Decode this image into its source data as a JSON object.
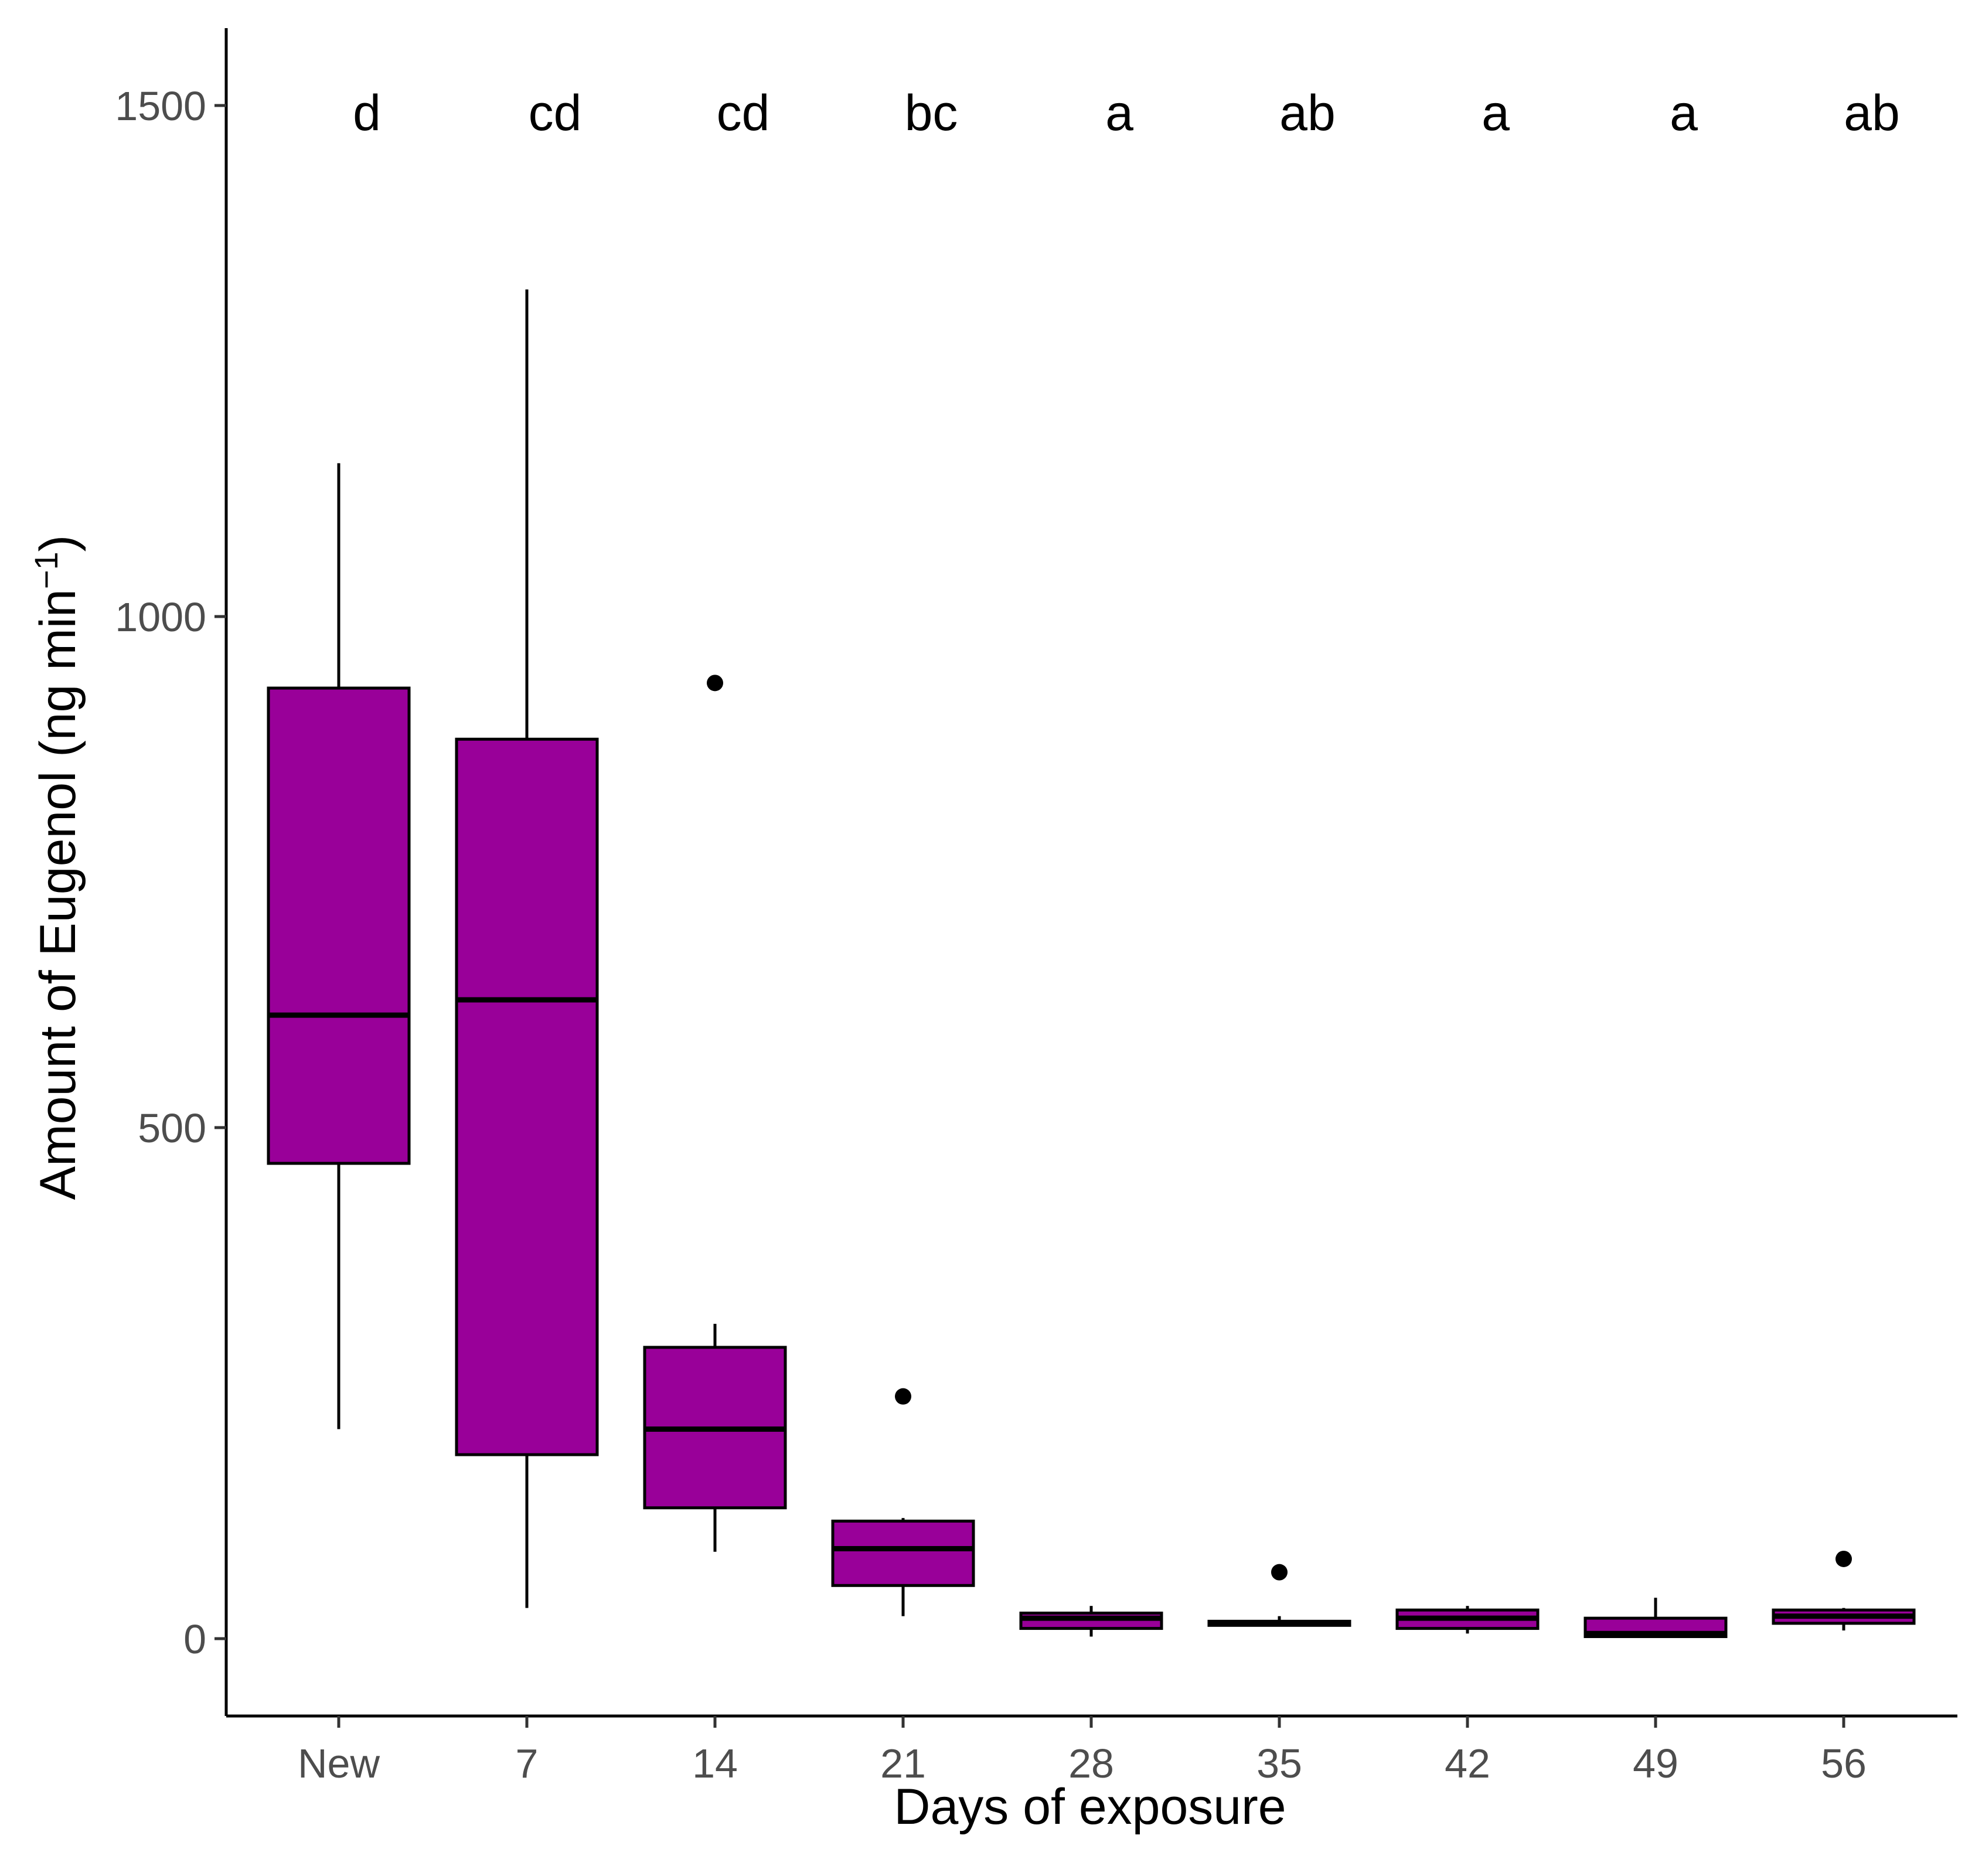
{
  "chart_data": {
    "type": "boxplot",
    "title": "",
    "xlabel": "Days of exposure",
    "ylabel_main": "Amount of Eugenol (ng min",
    "ylabel_sup": "−1",
    "ylabel_close": ")",
    "ylim": [
      -75,
      1575
    ],
    "yticks": [
      0,
      500,
      1000,
      1500
    ],
    "ytick_labels": [
      "0",
      "500",
      "1000",
      "1500"
    ],
    "fill_color": "#990099",
    "stroke_color": "#000000",
    "categories": [
      "New",
      "7",
      "14",
      "21",
      "28",
      "35",
      "42",
      "49",
      "56"
    ],
    "significance_letters": [
      "d",
      "cd",
      "cd",
      "bc",
      "a",
      "ab",
      "a",
      "a",
      "ab"
    ],
    "boxes": [
      {
        "category": "New",
        "min": 205,
        "q1": 465,
        "median": 610,
        "q3": 930,
        "max": 1150,
        "outliers": []
      },
      {
        "category": "7",
        "min": 30,
        "q1": 180,
        "median": 625,
        "q3": 880,
        "max": 1320,
        "outliers": []
      },
      {
        "category": "14",
        "min": 85,
        "q1": 128,
        "median": 205,
        "q3": 285,
        "max": 308,
        "outliers": [
          935
        ]
      },
      {
        "category": "21",
        "min": 22,
        "q1": 52,
        "median": 88,
        "q3": 115,
        "max": 118,
        "outliers": [
          237
        ]
      },
      {
        "category": "28",
        "min": 2,
        "q1": 10,
        "median": 20,
        "q3": 25,
        "max": 32,
        "outliers": []
      },
      {
        "category": "35",
        "min": 12,
        "q1": 13,
        "median": 15,
        "q3": 17,
        "max": 22,
        "outliers": [
          65
        ]
      },
      {
        "category": "42",
        "min": 5,
        "q1": 10,
        "median": 20,
        "q3": 28,
        "max": 32,
        "outliers": []
      },
      {
        "category": "49",
        "min": 2,
        "q1": 2,
        "median": 5,
        "q3": 20,
        "max": 40,
        "outliers": []
      },
      {
        "category": "56",
        "min": 8,
        "q1": 15,
        "median": 22,
        "q3": 28,
        "max": 30,
        "outliers": [
          78
        ]
      }
    ]
  }
}
